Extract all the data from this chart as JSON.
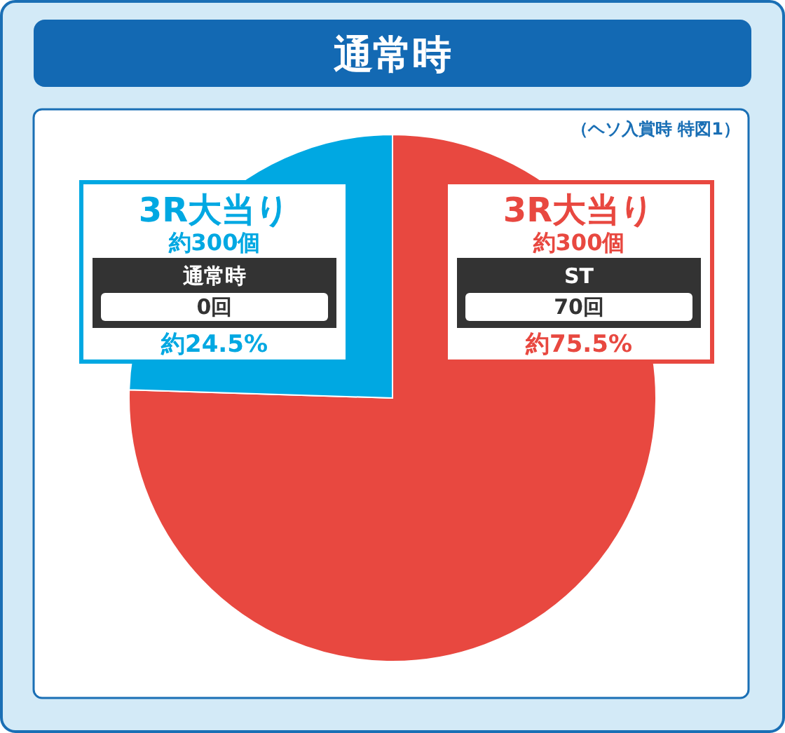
{
  "chart_data": {
    "type": "pie",
    "title": "通常時",
    "categories": [
      "3R大当り",
      "3R大当り"
    ],
    "values": [
      75.5,
      24.5
    ],
    "colors": [
      "#e84840",
      "#00a8e2"
    ],
    "value_labels": [
      "約75.5%",
      "約24.5%"
    ],
    "annotations": [
      "（ヘソ入賞時 特図1）",
      "約300個",
      "ST",
      "70回",
      "約300個",
      "通常時",
      "0回"
    ]
  }
}
